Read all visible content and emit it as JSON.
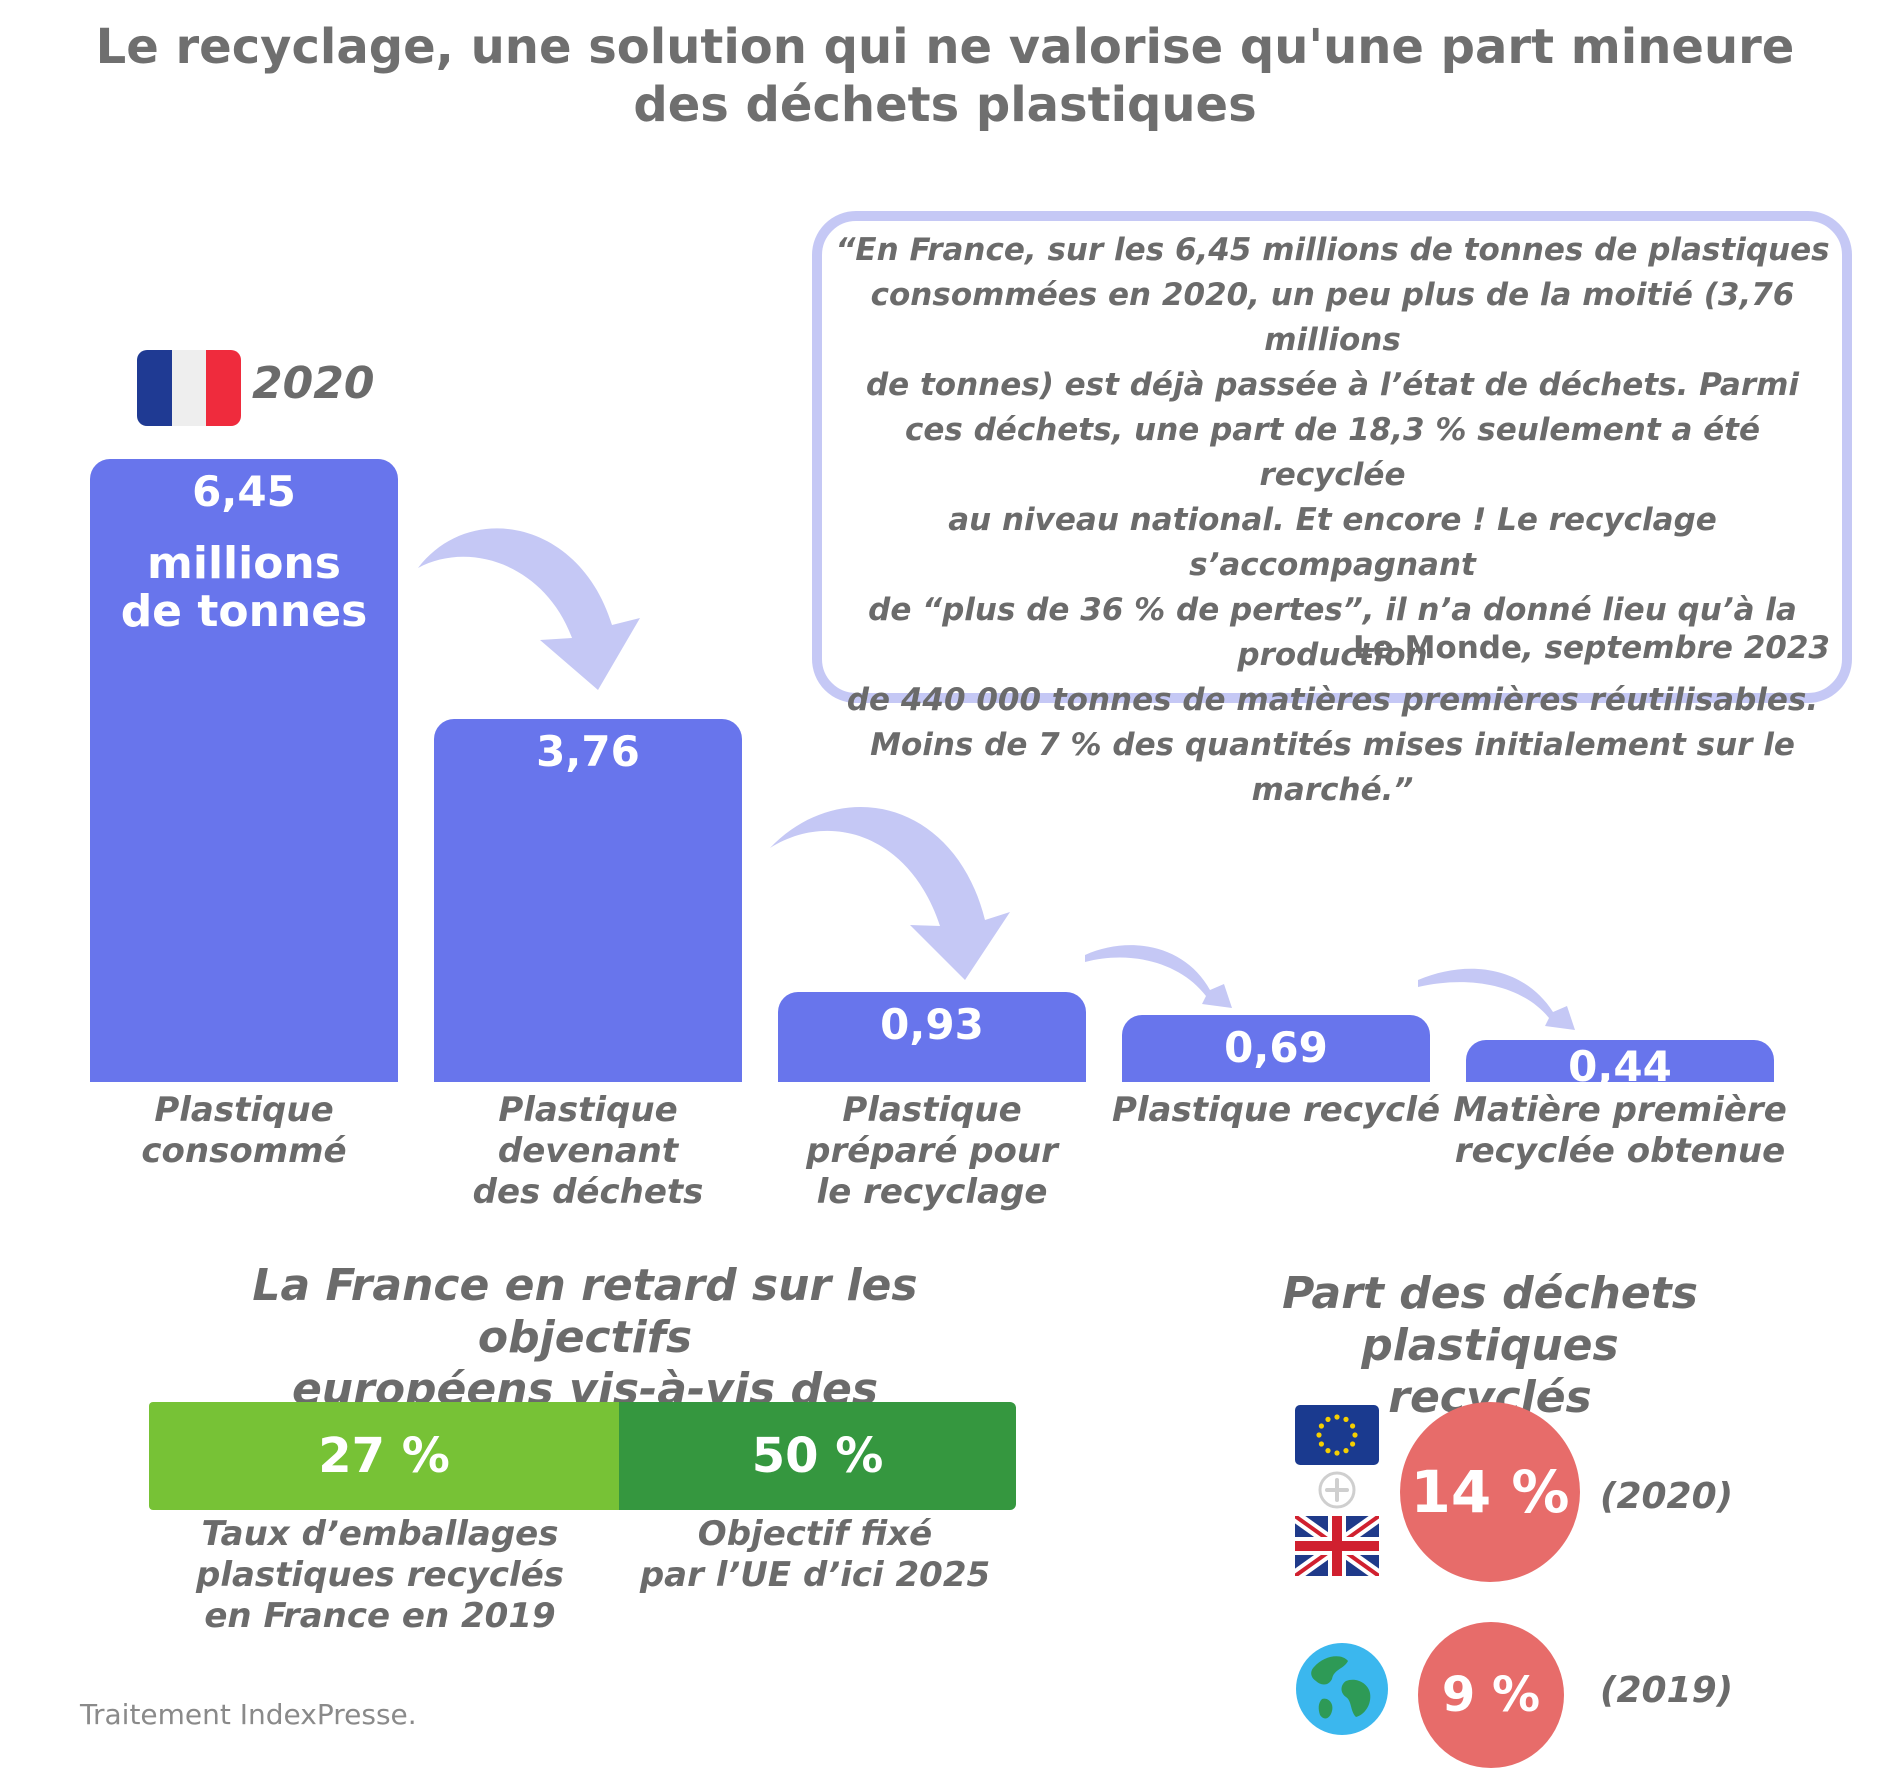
{
  "title": [
    "Le recyclage, une solution qui ne valorise qu'une part mineure",
    "des déchets plastiques"
  ],
  "france_label": {
    "year": "2020"
  },
  "quote": {
    "lines": [
      "“En France, sur les 6,45 millions de tonnes de plastiques",
      "consommées en 2020, un peu plus de la moitié (3,76 millions",
      "de tonnes) est déjà passée à l’état de déchets. Parmi",
      "ces déchets, une part de 18,3 % seulement a été recyclée",
      "au niveau national. Et encore ! Le recyclage s’accompagnant",
      "de “plus de 36 % de pertes”, il n’a donné lieu qu’à la production",
      "de 440 000 tonnes de matières premières réutilisables.",
      "Moins de 7 % des quantités mises initialement sur le marché.”"
    ],
    "source": "Le Monde",
    "date": ", septembre 2023"
  },
  "chart_data": [
    {
      "type": "bar",
      "unit": "millions de tonnes",
      "unit_lines": [
        "millions",
        "de tonnes"
      ],
      "categories": [
        [
          "Plastique",
          "consommé"
        ],
        [
          "Plastique devenant",
          "des déchets"
        ],
        [
          "Plastique",
          "préparé pour",
          "le recyclage"
        ],
        [
          "Plastique recyclé"
        ],
        [
          "Matière première",
          "recyclée obtenue"
        ]
      ],
      "values": [
        6.45,
        3.76,
        0.93,
        0.69,
        0.44
      ],
      "value_labels": [
        "6,45",
        "3,76",
        "0,93",
        "0,69",
        "0,44"
      ],
      "ylim": [
        0,
        6.45
      ],
      "color": "#6875ec"
    },
    {
      "type": "bar",
      "title": [
        "La France en retard sur les objectifs",
        "européens vis-à-vis des emballages"
      ],
      "segments": [
        {
          "value": 27,
          "label": "27 %",
          "caption": [
            "Taux d’emballages",
            "plastiques recyclés",
            "en France en 2019"
          ],
          "color": "#77c236"
        },
        {
          "value": 50,
          "label": "50 %",
          "caption": [
            "Objectif fixé",
            "par l’UE d’ici 2025"
          ],
          "color": "#35973f"
        }
      ]
    },
    {
      "type": "table",
      "title": [
        "Part des déchets",
        "plastiques recyclés"
      ],
      "rows": [
        {
          "region_icons": [
            "eu-flag-icon",
            "plus-icon",
            "uk-flag-icon"
          ],
          "value": 14,
          "label": "14 %",
          "year": "(2020)"
        },
        {
          "region_icons": [
            "globe-icon"
          ],
          "value": 9,
          "label": "9 %",
          "year": "(2019)"
        }
      ],
      "color": "#e76c6a"
    }
  ],
  "colors": {
    "bar": "#6875ec",
    "arrow": "#c5c8f5",
    "green_light": "#77c236",
    "green_dark": "#35973f",
    "circle": "#e76c6a",
    "text": "#6b6b6b"
  },
  "credit": "Traitement IndexPresse."
}
